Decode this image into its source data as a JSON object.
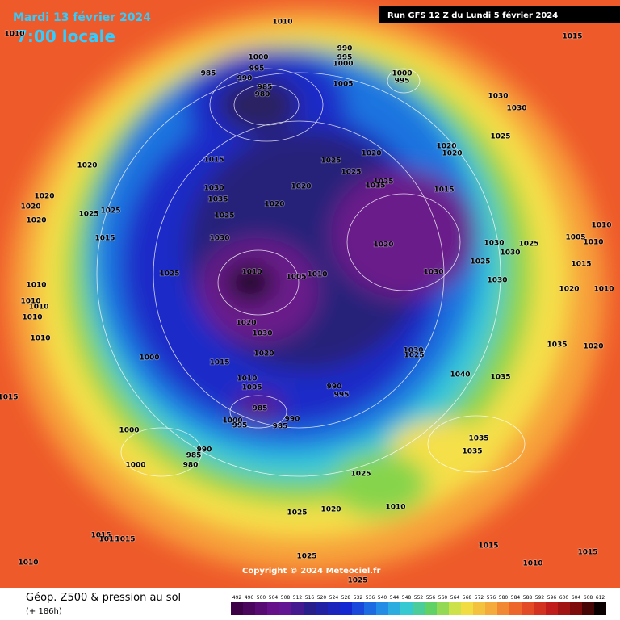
{
  "header": {
    "date": "Mardi 13 février 2024",
    "time": "7:00 locale",
    "run": "Run GFS 12 Z du Lundi 5 février 2024"
  },
  "footer": {
    "title": "Géop. Z500 & pression au sol",
    "lead": "(+ 186h)",
    "copyright": "Copyright © 2024 Meteociel.fr"
  },
  "legend": {
    "values": [
      492,
      496,
      500,
      504,
      508,
      512,
      516,
      520,
      524,
      528,
      532,
      536,
      540,
      544,
      548,
      552,
      556,
      560,
      564,
      568,
      572,
      576,
      580,
      584,
      588,
      592,
      596,
      600,
      604,
      608,
      612
    ]
  },
  "isobar_labels": [
    "1010",
    "1010",
    "1015",
    "990",
    "995",
    "1000",
    "1000",
    "995",
    "985",
    "990",
    "985",
    "980",
    "1000",
    "995",
    "1005",
    "1030",
    "1030",
    "1025",
    "1020",
    "1020",
    "1020",
    "1015",
    "1025",
    "1025",
    "1020",
    "1030",
    "1020",
    "1025",
    "1015",
    "1015",
    "1020",
    "1035",
    "1020",
    "1020",
    "1025",
    "1025",
    "1025",
    "1020",
    "1015",
    "1030",
    "1020",
    "1030",
    "1025",
    "1010",
    "1005",
    "1010",
    "1030",
    "1025",
    "1015",
    "1025",
    "1010",
    "1005",
    "1010",
    "1030",
    "1010",
    "1030",
    "1020",
    "1010",
    "1010",
    "1010",
    "1010",
    "1020",
    "1030",
    "1010",
    "1035",
    "1020",
    "1020",
    "1000",
    "1030",
    "1025",
    "1015",
    "1040",
    "1035",
    "1010",
    "1005",
    "990",
    "995",
    "1015",
    "985",
    "1000",
    "995",
    "990",
    "985",
    "1000",
    "990",
    "985",
    "1035",
    "1035",
    "1000",
    "980",
    "1025",
    "1010",
    "1020",
    "1025",
    "1015",
    "1015",
    "1015",
    "1015",
    "1010",
    "1025",
    "1010",
    "1015",
    "1025"
  ]
}
